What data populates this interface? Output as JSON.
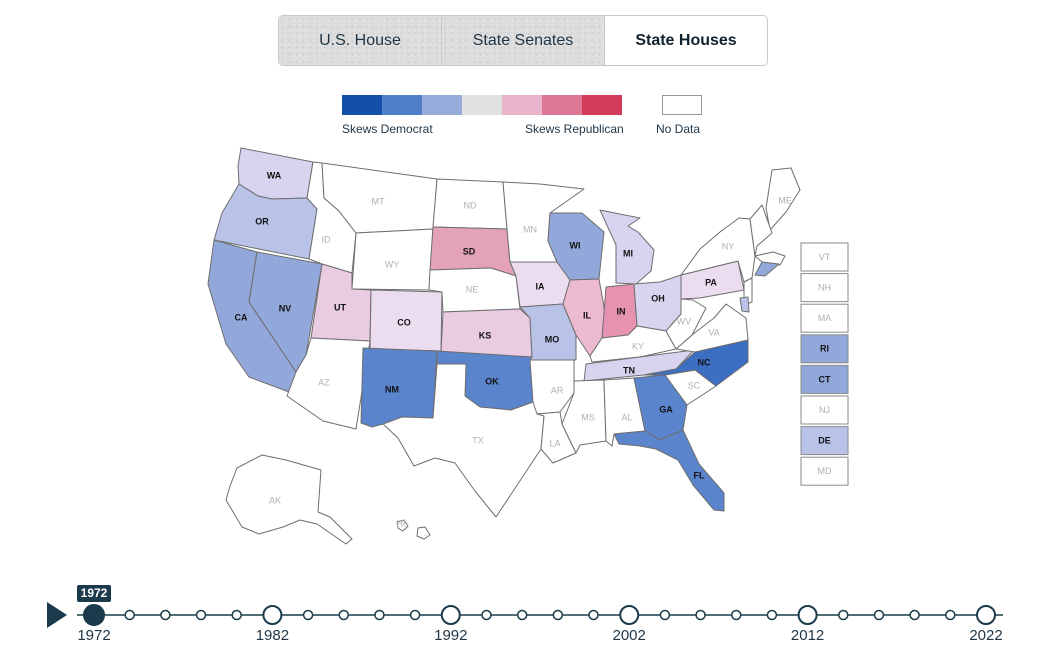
{
  "tabs": [
    {
      "label": "U.S. House",
      "active": false
    },
    {
      "label": "State Senates",
      "active": false
    },
    {
      "label": "State Houses",
      "active": true
    }
  ],
  "legend": {
    "colors": [
      "#1450a8",
      "#4f7fc8",
      "#96aadc",
      "#e1e1e1",
      "#e8b4cc",
      "#dc7896",
      "#d23c5a"
    ],
    "skews_democrat": "Skews Democrat",
    "skews_republican": "Skews Republican",
    "no_data": "No Data"
  },
  "map": {
    "palette": {
      "none": "#ffffff",
      "d3": "#3c6ec4",
      "d2": "#5a84cc",
      "d1": "#93a8da",
      "d0": "#b9c3e8",
      "dl": "#d8d3ee",
      "rl": "#ecdcf0",
      "r0": "#e9cce2",
      "r1": "#ecbad0",
      "r2": "#e3a2b8",
      "r3": "#e693b1"
    },
    "states": [
      {
        "abbr": "WA",
        "cat": "dl"
      },
      {
        "abbr": "OR",
        "cat": "d0"
      },
      {
        "abbr": "CA",
        "cat": "d1"
      },
      {
        "abbr": "NV",
        "cat": "d1"
      },
      {
        "abbr": "ID",
        "cat": "none"
      },
      {
        "abbr": "MT",
        "cat": "none"
      },
      {
        "abbr": "WY",
        "cat": "none"
      },
      {
        "abbr": "UT",
        "cat": "r0"
      },
      {
        "abbr": "CO",
        "cat": "rl"
      },
      {
        "abbr": "AZ",
        "cat": "none"
      },
      {
        "abbr": "NM",
        "cat": "d2"
      },
      {
        "abbr": "ND",
        "cat": "none"
      },
      {
        "abbr": "SD",
        "cat": "r2"
      },
      {
        "abbr": "NE",
        "cat": "none"
      },
      {
        "abbr": "KS",
        "cat": "r0"
      },
      {
        "abbr": "OK",
        "cat": "d2"
      },
      {
        "abbr": "TX",
        "cat": "none"
      },
      {
        "abbr": "MN",
        "cat": "none"
      },
      {
        "abbr": "IA",
        "cat": "rl"
      },
      {
        "abbr": "MO",
        "cat": "d0"
      },
      {
        "abbr": "AR",
        "cat": "none"
      },
      {
        "abbr": "LA",
        "cat": "none"
      },
      {
        "abbr": "WI",
        "cat": "d1"
      },
      {
        "abbr": "IL",
        "cat": "r1"
      },
      {
        "abbr": "MI",
        "cat": "dl"
      },
      {
        "abbr": "IN",
        "cat": "r3"
      },
      {
        "abbr": "OH",
        "cat": "dl"
      },
      {
        "abbr": "KY",
        "cat": "none"
      },
      {
        "abbr": "TN",
        "cat": "dl"
      },
      {
        "abbr": "MS",
        "cat": "none"
      },
      {
        "abbr": "AL",
        "cat": "none"
      },
      {
        "abbr": "GA",
        "cat": "d2"
      },
      {
        "abbr": "FL",
        "cat": "d2"
      },
      {
        "abbr": "SC",
        "cat": "none"
      },
      {
        "abbr": "NC",
        "cat": "d3"
      },
      {
        "abbr": "VA",
        "cat": "none"
      },
      {
        "abbr": "WV",
        "cat": "none"
      },
      {
        "abbr": "PA",
        "cat": "rl"
      },
      {
        "abbr": "NY",
        "cat": "none"
      },
      {
        "abbr": "ME",
        "cat": "none"
      },
      {
        "abbr": "AK",
        "cat": "none"
      },
      {
        "abbr": "HI",
        "cat": "none"
      }
    ],
    "small_states": [
      {
        "abbr": "VT",
        "cat": "none"
      },
      {
        "abbr": "NH",
        "cat": "none"
      },
      {
        "abbr": "MA",
        "cat": "none"
      },
      {
        "abbr": "RI",
        "cat": "d1"
      },
      {
        "abbr": "CT",
        "cat": "d1"
      },
      {
        "abbr": "NJ",
        "cat": "none"
      },
      {
        "abbr": "DE",
        "cat": "d0"
      },
      {
        "abbr": "MD",
        "cat": "none"
      }
    ]
  },
  "timeline": {
    "selected_year": "1972",
    "labels": [
      "1972",
      "1982",
      "1992",
      "2002",
      "2012",
      "2022"
    ],
    "start": 1972,
    "end": 2022,
    "step": 2,
    "major_every": 10
  }
}
